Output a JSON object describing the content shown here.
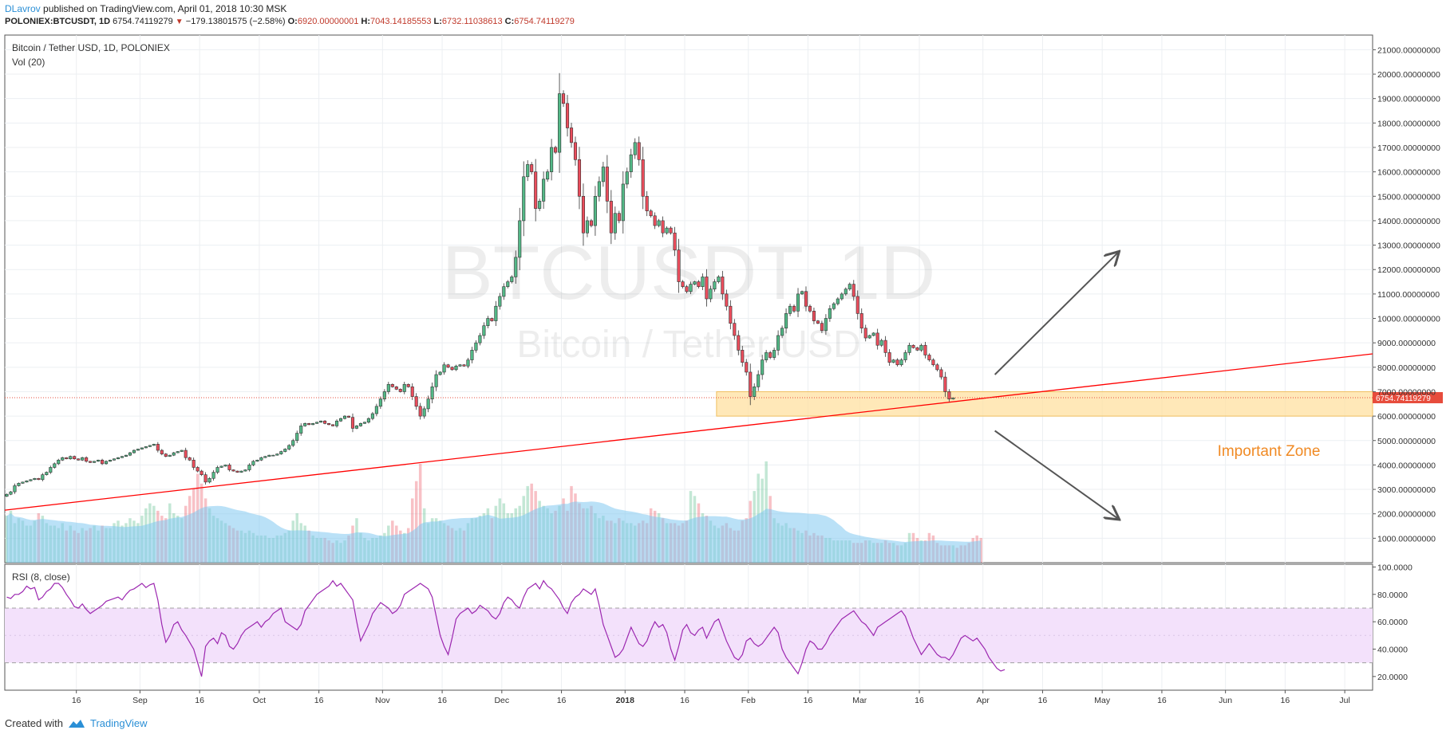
{
  "header": {
    "author": "DLavrov",
    "published": "published on TradingView.com, April 01, 2018 10:30 MSK",
    "symbol": "POLONIEX:BTCUSDT, 1D",
    "last": "6754.74119279",
    "arrow": "▼",
    "change": "−179.13801575 (−2.58%)",
    "o_label": "O:",
    "o_value": "6920.00000001",
    "h_label": "H:",
    "h_value": "7043.14185553",
    "l_label": "L:",
    "l_value": "6732.11038613",
    "c_label": "C:",
    "c_value": "6754.74119279"
  },
  "footer": {
    "created_with": "Created with",
    "brand": "TradingView"
  },
  "colors": {
    "up": "#53b987",
    "down": "#eb4d5c",
    "trendline": "#ff0000",
    "zone_fill": "#ffe0a0",
    "zone_border": "#f0c060",
    "rsi_line": "#9c27b0",
    "rsi_band": "#f3e1fb",
    "volume_ma": "#81c9f0",
    "price_label": "#e74c3c",
    "zone_text": "#f08a24",
    "grid": "#eceff2"
  },
  "chart_data": {
    "type": "candlestick",
    "title": "Bitcoin / Tether USD, 1D, POLONIEX",
    "watermark": {
      "main": "BTCUSDT, 1D",
      "sub": "Bitcoin / Tether USD"
    },
    "volume_label": "Vol (20)",
    "x_start": "2017-07-29",
    "x_ticks": [
      {
        "date": "2017-08-16",
        "label": "16"
      },
      {
        "date": "2017-09-01",
        "label": "Sep"
      },
      {
        "date": "2017-09-16",
        "label": "16"
      },
      {
        "date": "2017-10-01",
        "label": "Oct"
      },
      {
        "date": "2017-10-16",
        "label": "16"
      },
      {
        "date": "2017-11-01",
        "label": "Nov"
      },
      {
        "date": "2017-11-16",
        "label": "16"
      },
      {
        "date": "2017-12-01",
        "label": "Dec"
      },
      {
        "date": "2017-12-16",
        "label": "16"
      },
      {
        "date": "2018-01-01",
        "label": "2018"
      },
      {
        "date": "2018-01-16",
        "label": "16"
      },
      {
        "date": "2018-02-01",
        "label": "Feb"
      },
      {
        "date": "2018-02-16",
        "label": "16"
      },
      {
        "date": "2018-03-01",
        "label": "Mar"
      },
      {
        "date": "2018-03-16",
        "label": "16"
      },
      {
        "date": "2018-04-01",
        "label": "Apr"
      },
      {
        "date": "2018-04-16",
        "label": "16"
      },
      {
        "date": "2018-05-01",
        "label": "May"
      },
      {
        "date": "2018-05-16",
        "label": "16"
      },
      {
        "date": "2018-06-01",
        "label": "Jun"
      },
      {
        "date": "2018-06-16",
        "label": "16"
      },
      {
        "date": "2018-07-01",
        "label": "Jul"
      }
    ],
    "y_range": [
      0,
      21600
    ],
    "y_ticks": [
      1000,
      2000,
      3000,
      4000,
      5000,
      6000,
      7000,
      8000,
      9000,
      10000,
      11000,
      12000,
      13000,
      14000,
      15000,
      16000,
      17000,
      18000,
      19000,
      20000,
      21000
    ],
    "y_tick_labels": [
      "1000.00000000",
      "2000.00000000",
      "3000.00000000",
      "4000.00000000",
      "5000.00000000",
      "6000.00000000",
      "7000.00000000",
      "8000.00000000",
      "9000.00000000",
      "10000.00000000",
      "11000.00000000",
      "12000.00000000",
      "13000.00000000",
      "14000.00000000",
      "15000.00000000",
      "16000.00000000",
      "17000.00000000",
      "18000.00000000",
      "19000.00000000",
      "20000.00000000",
      "21000.00000000"
    ],
    "last_price_label": "6754.74119279",
    "last_price": 6754.74,
    "closes": [
      2800,
      2900,
      3150,
      3250,
      3300,
      3350,
      3400,
      3450,
      3400,
      3600,
      3700,
      3900,
      4050,
      4200,
      4300,
      4250,
      4350,
      4250,
      4200,
      4300,
      4150,
      4100,
      4150,
      4200,
      4050,
      4150,
      4200,
      4250,
      4300,
      4350,
      4400,
      4500,
      4600,
      4650,
      4700,
      4750,
      4800,
      4850,
      4600,
      4450,
      4350,
      4400,
      4500,
      4550,
      4600,
      4300,
      4200,
      3900,
      3750,
      3600,
      3300,
      3450,
      3700,
      3900,
      3950,
      4000,
      3800,
      3750,
      3700,
      3750,
      3800,
      4000,
      4150,
      4200,
      4300,
      4350,
      4400,
      4400,
      4450,
      4550,
      4650,
      4800,
      5000,
      5300,
      5600,
      5700,
      5650,
      5700,
      5750,
      5800,
      5700,
      5650,
      5600,
      5800,
      5900,
      6000,
      5950,
      5500,
      5600,
      5700,
      5750,
      5900,
      6100,
      6400,
      6700,
      7000,
      7300,
      7200,
      7100,
      7000,
      7300,
      7200,
      6800,
      6400,
      6000,
      6300,
      6700,
      7200,
      7700,
      7800,
      8100,
      8000,
      7900,
      8050,
      8100,
      8050,
      8300,
      8700,
      9000,
      9300,
      9700,
      10000,
      9900,
      10500,
      10900,
      11300,
      11500,
      11700,
      12500,
      14000,
      15800,
      16300,
      16000,
      14500,
      14800,
      15700,
      16000,
      17000,
      16800,
      19200,
      18800,
      17800,
      17200,
      16500,
      15000,
      13500,
      14000,
      13800,
      15000,
      15600,
      16200,
      14800,
      13500,
      14300,
      14000,
      15500,
      16000,
      16700,
      17200,
      16500,
      15000,
      14400,
      14200,
      13800,
      14000,
      13500,
      13700,
      13500,
      12800,
      11500,
      11300,
      11100,
      11400,
      11500,
      11300,
      11700,
      10800,
      11200,
      11500,
      11700,
      11000,
      10500,
      9800,
      9300,
      8700,
      8200,
      7800,
      6800,
      7200,
      7700,
      8300,
      8600,
      8400,
      8700,
      9300,
      9600,
      10200,
      10500,
      10300,
      11000,
      11100,
      10500,
      10300,
      9900,
      9800,
      9500,
      10000,
      10400,
      10600,
      10800,
      11000,
      11200,
      11400,
      10900,
      10200,
      9600,
      9200,
      9300,
      9400,
      8900,
      9100,
      8600,
      8200,
      8300,
      8100,
      8300,
      8600,
      8900,
      8800,
      8700,
      8900,
      8500,
      8300,
      8100,
      7900,
      7600,
      7000,
      6700,
      6750
    ],
    "volumes": [
      1900,
      2100,
      1600,
      1800,
      1700,
      1500,
      1500,
      1700,
      2000,
      1900,
      1600,
      1500,
      1500,
      1400,
      1600,
      1300,
      1500,
      1300,
      1200,
      1400,
      1300,
      1400,
      1500,
      1300,
      1500,
      1400,
      1400,
      1600,
      1700,
      1500,
      1600,
      1800,
      1700,
      1600,
      1900,
      2200,
      2400,
      2300,
      2100,
      1900,
      1800,
      2400,
      2000,
      1900,
      1800,
      2300,
      2700,
      3000,
      3600,
      3200,
      2600,
      2200,
      1900,
      1800,
      1700,
      1600,
      1500,
      1400,
      1300,
      1300,
      1200,
      1300,
      1200,
      1100,
      1100,
      1100,
      1000,
      1000,
      1100,
      1100,
      1200,
      1300,
      1700,
      2000,
      1600,
      1500,
      1300,
      1100,
      1000,
      1000,
      1000,
      900,
      800,
      900,
      800,
      900,
      1100,
      1500,
      1800,
      1200,
      1000,
      900,
      1000,
      1000,
      1100,
      1200,
      1500,
      1700,
      1500,
      1300,
      1200,
      1400,
      2600,
      3300,
      4000,
      2200,
      1600,
      1800,
      1800,
      1700,
      1600,
      1500,
      1400,
      1300,
      1400,
      1300,
      1600,
      1800,
      1800,
      1900,
      2000,
      2200,
      1800,
      2300,
      2600,
      2400,
      2000,
      2000,
      2200,
      2300,
      2700,
      3100,
      3200,
      2900,
      2500,
      2300,
      2200,
      2000,
      2100,
      2300,
      2600,
      2100,
      3100,
      2800,
      2400,
      2200,
      2200,
      2300,
      2000,
      1800,
      1900,
      1700,
      1700,
      1600,
      1800,
      1700,
      1600,
      1600,
      1500,
      1600,
      1700,
      1600,
      2200,
      2100,
      2000,
      1800,
      1600,
      1600,
      1600,
      1500,
      1600,
      1700,
      2900,
      2700,
      2400,
      2000,
      1900,
      1700,
      1500,
      1400,
      1500,
      1600,
      1400,
      1300,
      1300,
      1700,
      1800,
      2500,
      2900,
      3600,
      3400,
      4100,
      2700,
      1800,
      1600,
      1500,
      1600,
      1400,
      1400,
      1300,
      1200,
      1300,
      1100,
      1200,
      1100,
      1100,
      1000,
      1000,
      900,
      900,
      900,
      900,
      900,
      800,
      800,
      800,
      900,
      900,
      800,
      800,
      800,
      900,
      800,
      800,
      700,
      700,
      800,
      1200,
      1200,
      1000,
      900,
      900,
      1200,
      1100,
      800,
      700,
      700,
      700,
      700,
      600,
      700,
      700,
      800,
      1000,
      1100,
      1000
    ],
    "rsi": {
      "label": "RSI (8, close)",
      "y_range": [
        10,
        102
      ],
      "y_ticks": [
        20,
        40,
        60,
        80,
        100
      ],
      "y_tick_labels": [
        "20.0000",
        "40.0000",
        "60.0000",
        "80.0000",
        "100.0000"
      ],
      "band": [
        30,
        70
      ],
      "values": [
        78,
        77,
        80,
        80,
        82,
        86,
        84,
        85,
        76,
        78,
        82,
        84,
        88,
        88,
        85,
        80,
        76,
        71,
        70,
        73,
        69,
        66,
        68,
        70,
        72,
        75,
        76,
        77,
        78,
        76,
        80,
        83,
        84,
        86,
        88,
        85,
        87,
        88,
        76,
        58,
        45,
        50,
        58,
        60,
        54,
        50,
        45,
        40,
        30,
        20,
        42,
        46,
        48,
        44,
        52,
        50,
        42,
        40,
        44,
        50,
        54,
        56,
        58,
        60,
        56,
        60,
        62,
        66,
        68,
        70,
        60,
        58,
        56,
        54,
        58,
        68,
        72,
        76,
        80,
        82,
        84,
        86,
        90,
        86,
        88,
        84,
        80,
        76,
        60,
        46,
        52,
        58,
        66,
        70,
        74,
        72,
        70,
        66,
        68,
        72,
        80,
        82,
        84,
        86,
        88,
        86,
        84,
        78,
        64,
        50,
        42,
        36,
        48,
        62,
        66,
        68,
        70,
        66,
        68,
        72,
        70,
        68,
        64,
        62,
        66,
        74,
        78,
        76,
        72,
        70,
        78,
        84,
        86,
        88,
        84,
        90,
        86,
        84,
        80,
        76,
        70,
        66,
        74,
        78,
        80,
        84,
        82,
        80,
        84,
        72,
        58,
        50,
        42,
        34,
        36,
        40,
        48,
        56,
        50,
        44,
        42,
        46,
        54,
        60,
        56,
        58,
        52,
        40,
        32,
        42,
        54,
        58,
        52,
        50,
        54,
        56,
        48,
        54,
        60,
        62,
        54,
        46,
        40,
        34,
        32,
        36,
        46,
        48,
        44,
        42,
        44,
        48,
        52,
        56,
        52,
        40,
        34,
        30,
        26,
        22,
        30,
        40,
        46,
        44,
        40,
        40,
        44,
        50,
        54,
        58,
        62,
        64,
        66,
        68,
        64,
        60,
        58,
        54,
        50,
        56,
        58,
        60,
        62,
        64,
        66,
        68,
        64,
        56,
        48,
        42,
        36,
        40,
        44,
        40,
        36,
        34,
        34,
        32,
        36,
        42,
        48,
        50,
        48,
        46,
        48,
        44,
        40,
        34,
        30,
        26,
        24,
        25
      ]
    },
    "trendline": {
      "from": [
        "2017-07-29",
        2150
      ],
      "to": [
        "2018-07-08",
        8550
      ]
    },
    "zone": {
      "label": "Important Zone",
      "y_from": 6000,
      "y_to": 7000,
      "from_date": "2018-01-24",
      "to_date": "2018-07-08"
    },
    "arrows": [
      {
        "from": [
          "2018-04-04",
          7700
        ],
        "to": [
          "2018-05-05",
          12700
        ]
      },
      {
        "from": [
          "2018-04-04",
          5400
        ],
        "to": [
          "2018-05-05",
          1800
        ]
      }
    ]
  }
}
